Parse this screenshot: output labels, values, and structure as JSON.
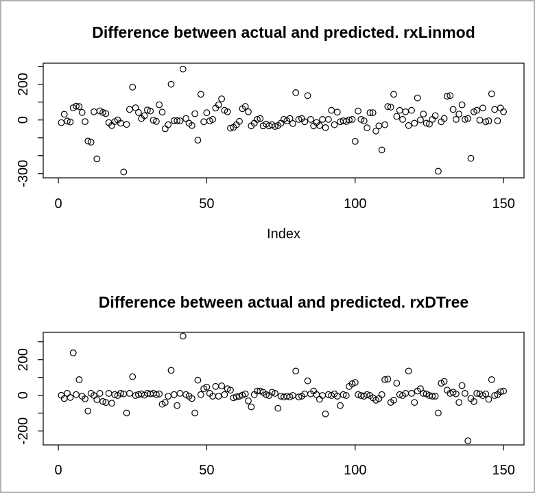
{
  "figure": {
    "background_color": "#ffffff",
    "frame_border_color": "#b0b0b0",
    "axis_color": "#000000",
    "marker": "open-circle",
    "marker_color": "#000000"
  },
  "chart_data": [
    {
      "type": "scatter",
      "title": "Difference between actual and predicted. rxLinmod",
      "xlabel": "Index",
      "ylabel": "",
      "grid": false,
      "legend": false,
      "x_is_index": true,
      "n_points": 150,
      "xlim": [
        -5.1,
        156.9
      ],
      "ylim": [
        -324,
        318
      ],
      "x_ticks": [
        {
          "value": 0,
          "label": "0"
        },
        {
          "value": 50,
          "label": "50"
        },
        {
          "value": 100,
          "label": "100"
        },
        {
          "value": 150,
          "label": "150"
        }
      ],
      "y_ticks": [
        {
          "value": 300,
          "label": ""
        },
        {
          "value": 200,
          "label": "200"
        },
        {
          "value": 100,
          "label": ""
        },
        {
          "value": 0,
          "label": "0"
        },
        {
          "value": -100,
          "label": ""
        },
        {
          "value": -200,
          "label": ""
        },
        {
          "value": -300,
          "label": "-300"
        }
      ],
      "y": [
        -15,
        32,
        -6,
        -11,
        68,
        77,
        75,
        42,
        -9,
        -118,
        -124,
        46,
        -218,
        51,
        42,
        36,
        -15,
        -31,
        -9,
        0,
        -18,
        -291,
        -25,
        59,
        184,
        68,
        42,
        8,
        24,
        56,
        50,
        -1,
        -8,
        85,
        44,
        -49,
        -27,
        200,
        -4,
        -4,
        -5,
        285,
        8,
        -18,
        -31,
        35,
        -113,
        144,
        -10,
        41,
        -5,
        3,
        67,
        85,
        118,
        54,
        46,
        -46,
        -41,
        -27,
        -8,
        63,
        76,
        46,
        -33,
        -18,
        3,
        8,
        -33,
        -23,
        -33,
        -27,
        -36,
        -31,
        -18,
        3,
        -5,
        8,
        -20,
        153,
        3,
        8,
        -10,
        136,
        3,
        -33,
        -14,
        -31,
        3,
        -43,
        3,
        54,
        -27,
        44,
        -10,
        -5,
        -8,
        0,
        3,
        -120,
        50,
        3,
        -5,
        -44,
        41,
        41,
        -62,
        -33,
        -168,
        -27,
        75,
        72,
        144,
        20,
        54,
        3,
        46,
        -31,
        54,
        -18,
        123,
        0,
        33,
        -18,
        -23,
        3,
        24,
        -287,
        -10,
        8,
        133,
        136,
        59,
        3,
        33,
        85,
        3,
        8,
        -215,
        46,
        54,
        -1,
        67,
        -10,
        -5,
        146,
        59,
        -5,
        67,
        46
      ]
    },
    {
      "type": "scatter",
      "title": "Difference between actual and predicted. rxDTree",
      "xlabel": "",
      "ylabel": "",
      "grid": false,
      "legend": false,
      "x_is_index": true,
      "n_points": 150,
      "xlim": [
        -5.1,
        156.9
      ],
      "ylim": [
        -278,
        353
      ],
      "x_ticks": [
        {
          "value": 0,
          "label": "0"
        },
        {
          "value": 50,
          "label": "50"
        },
        {
          "value": 100,
          "label": "100"
        },
        {
          "value": 150,
          "label": "150"
        }
      ],
      "y_ticks": [
        {
          "value": 300,
          "label": ""
        },
        {
          "value": 200,
          "label": "200"
        },
        {
          "value": 100,
          "label": ""
        },
        {
          "value": 0,
          "label": "0"
        },
        {
          "value": -100,
          "label": ""
        },
        {
          "value": -200,
          "label": "-200"
        }
      ],
      "y": [
        0,
        -18,
        11,
        -12,
        238,
        4,
        88,
        -5,
        -20,
        -88,
        11,
        -1,
        -24,
        11,
        -35,
        -40,
        11,
        -44,
        4,
        -1,
        11,
        8,
        -99,
        11,
        104,
        -1,
        4,
        8,
        1,
        11,
        8,
        11,
        4,
        8,
        -50,
        -40,
        -5,
        140,
        4,
        -57,
        11,
        332,
        4,
        -5,
        -18,
        -99,
        85,
        4,
        37,
        46,
        11,
        -5,
        50,
        -5,
        53,
        4,
        37,
        29,
        -14,
        -9,
        -5,
        1,
        8,
        -31,
        -65,
        4,
        24,
        24,
        17,
        4,
        -1,
        17,
        11,
        -73,
        -5,
        -9,
        -5,
        -9,
        -1,
        136,
        -9,
        -5,
        8,
        81,
        8,
        24,
        4,
        -22,
        -1,
        -104,
        4,
        -1,
        8,
        -5,
        -57,
        4,
        -1,
        50,
        65,
        72,
        4,
        -1,
        -5,
        4,
        -1,
        -14,
        -27,
        -18,
        4,
        88,
        91,
        -40,
        -27,
        68,
        4,
        -1,
        11,
        136,
        11,
        -40,
        24,
        37,
        11,
        8,
        -1,
        -5,
        -5,
        -99,
        68,
        78,
        29,
        11,
        17,
        8,
        -40,
        55,
        11,
        -255,
        -18,
        -35,
        11,
        8,
        -1,
        8,
        -22,
        88,
        -1,
        4,
        20,
        24
      ]
    }
  ]
}
